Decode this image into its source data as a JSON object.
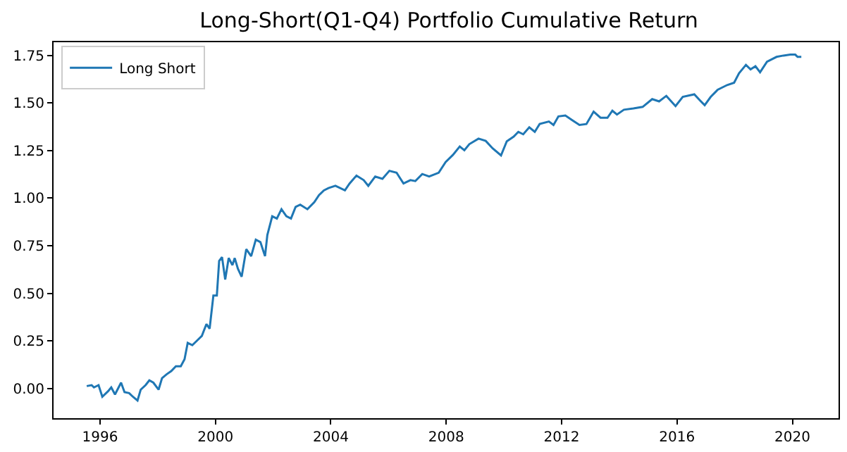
{
  "chart_data": {
    "type": "line",
    "title": "Long-Short(Q1-Q4) Portfolio Cumulative Return",
    "x": [
      1995.54,
      1995.71,
      1995.79,
      1995.95,
      1996.08,
      1996.28,
      1996.39,
      1996.52,
      1996.73,
      1996.85,
      1997.01,
      1997.14,
      1997.3,
      1997.41,
      1997.58,
      1997.71,
      1997.85,
      1998.03,
      1998.15,
      1998.31,
      1998.47,
      1998.63,
      1998.8,
      1998.93,
      1999.04,
      1999.2,
      1999.37,
      1999.53,
      1999.69,
      1999.8,
      1999.93,
      2000.05,
      2000.13,
      2000.23,
      2000.34,
      2000.46,
      2000.59,
      2000.67,
      2000.78,
      2000.91,
      2001.07,
      2001.24,
      2001.4,
      2001.56,
      2001.72,
      2001.8,
      2001.97,
      2002.13,
      2002.29,
      2002.46,
      2002.62,
      2002.78,
      2002.94,
      2003.19,
      2003.43,
      2003.59,
      2003.76,
      2003.92,
      2004.16,
      2004.49,
      2004.65,
      2004.89,
      2005.14,
      2005.3,
      2005.54,
      2005.79,
      2006.03,
      2006.28,
      2006.52,
      2006.76,
      2006.93,
      2007.17,
      2007.41,
      2007.74,
      2007.98,
      2008.23,
      2008.47,
      2008.63,
      2008.8,
      2009.12,
      2009.37,
      2009.61,
      2009.9,
      2010.1,
      2010.34,
      2010.5,
      2010.67,
      2010.88,
      2011.07,
      2011.24,
      2011.56,
      2011.72,
      2011.89,
      2012.13,
      2012.37,
      2012.62,
      2012.86,
      2013.11,
      2013.35,
      2013.59,
      2013.76,
      2013.92,
      2014.16,
      2014.49,
      2014.81,
      2015.14,
      2015.38,
      2015.63,
      2015.95,
      2016.2,
      2016.6,
      2016.8,
      2016.96,
      2017.17,
      2017.41,
      2017.74,
      2017.98,
      2018.15,
      2018.39,
      2018.55,
      2018.72,
      2018.88,
      2019.12,
      2019.45,
      2019.69,
      2019.93,
      2020.1,
      2020.18,
      2020.31
    ],
    "series": [
      {
        "name": "Long Short",
        "color": "#1f77b4",
        "values": [
          0.012,
          0.017,
          0.005,
          0.017,
          -0.044,
          -0.015,
          0.005,
          -0.032,
          0.03,
          -0.02,
          -0.025,
          -0.044,
          -0.064,
          -0.007,
          0.017,
          0.042,
          0.03,
          -0.007,
          0.054,
          0.074,
          0.091,
          0.116,
          0.116,
          0.153,
          0.239,
          0.227,
          0.252,
          0.276,
          0.338,
          0.314,
          0.488,
          0.488,
          0.67,
          0.69,
          0.572,
          0.685,
          0.648,
          0.685,
          0.629,
          0.587,
          0.732,
          0.695,
          0.782,
          0.769,
          0.695,
          0.806,
          0.905,
          0.893,
          0.942,
          0.905,
          0.893,
          0.954,
          0.966,
          0.942,
          0.979,
          1.016,
          1.041,
          1.053,
          1.065,
          1.041,
          1.077,
          1.119,
          1.095,
          1.065,
          1.114,
          1.102,
          1.144,
          1.134,
          1.077,
          1.095,
          1.09,
          1.127,
          1.114,
          1.134,
          1.19,
          1.227,
          1.272,
          1.252,
          1.284,
          1.313,
          1.301,
          1.262,
          1.225,
          1.299,
          1.324,
          1.349,
          1.336,
          1.373,
          1.349,
          1.39,
          1.403,
          1.385,
          1.43,
          1.435,
          1.41,
          1.385,
          1.39,
          1.455,
          1.423,
          1.423,
          1.46,
          1.44,
          1.465,
          1.472,
          1.48,
          1.521,
          1.509,
          1.538,
          1.484,
          1.533,
          1.546,
          1.514,
          1.489,
          1.533,
          1.57,
          1.595,
          1.607,
          1.657,
          1.701,
          1.677,
          1.694,
          1.662,
          1.718,
          1.743,
          1.75,
          1.755,
          1.755,
          1.743,
          1.743
        ]
      }
    ],
    "xlim": [
      1994.39,
      2021.6
    ],
    "xticks": [
      {
        "value": 1996,
        "label": "1996"
      },
      {
        "value": 2000,
        "label": "2000"
      },
      {
        "value": 2004,
        "label": "2004"
      },
      {
        "value": 2008,
        "label": "2008"
      },
      {
        "value": 2012,
        "label": "2012"
      },
      {
        "value": 2016,
        "label": "2016"
      },
      {
        "value": 2020,
        "label": "2020"
      }
    ],
    "ylim": [
      -0.157,
      1.82
    ],
    "yticks": [
      {
        "value": 0,
        "label": "0.00"
      },
      {
        "value": 0.25,
        "label": "0.25"
      },
      {
        "value": 0.5,
        "label": "0.50"
      },
      {
        "value": 0.75,
        "label": "0.75"
      },
      {
        "value": 1,
        "label": "1.00"
      },
      {
        "value": 1.25,
        "label": "1.25"
      },
      {
        "value": 1.5,
        "label": "1.50"
      },
      {
        "value": 1.75,
        "label": "1.75"
      }
    ],
    "grid": false,
    "legend": "top left",
    "line_style": "solid"
  }
}
